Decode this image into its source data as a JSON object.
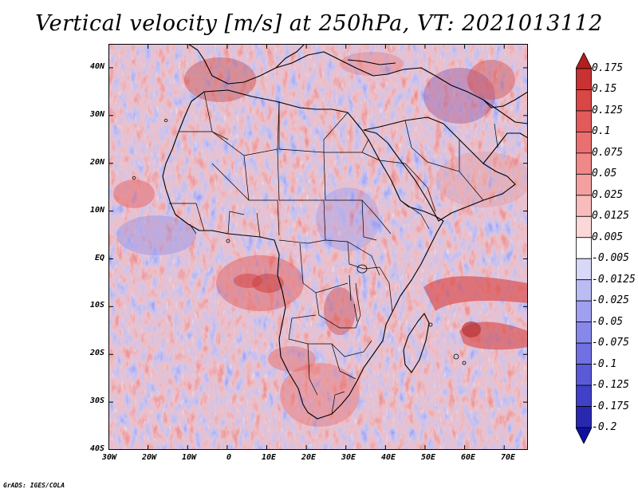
{
  "title": "Vertical velocity [m/s] at 250hPa, VT: 2021013112",
  "footer": "GrADS: IGES/COLA",
  "colors": {
    "background": "#ffffff",
    "land_outline": "#000000",
    "field_neutral": "#f4f2fb"
  },
  "map": {
    "projection": "latlon",
    "lon_range": [
      -30,
      76
    ],
    "lat_range": [
      -40,
      45
    ],
    "lat_labels": [
      "40N",
      "30N",
      "20N",
      "10N",
      "EQ",
      "10S",
      "20S",
      "30S",
      "40S"
    ],
    "lat_values": [
      40,
      30,
      20,
      10,
      0,
      -10,
      -20,
      -30,
      -40
    ],
    "lon_labels": [
      "30W",
      "20W",
      "10W",
      "0",
      "10E",
      "20E",
      "30E",
      "40E",
      "50E",
      "60E",
      "70E"
    ],
    "lon_values": [
      -30,
      -20,
      -10,
      0,
      10,
      20,
      30,
      40,
      50,
      60,
      70
    ]
  },
  "colorbar": {
    "labels": [
      "0.175",
      "0.15",
      "0.125",
      "0.1",
      "0.075",
      "0.05",
      "0.025",
      "0.0125",
      "0.005",
      "-0.005",
      "-0.0125",
      "-0.025",
      "-0.05",
      "-0.075",
      "-0.1",
      "-0.125",
      "-0.175",
      "-0.2"
    ],
    "colors": [
      "#b41e1e",
      "#c83232",
      "#d84646",
      "#e25a5a",
      "#ea7070",
      "#f08888",
      "#f4a0a0",
      "#f8bcbc",
      "#fbd8d8",
      "#ffffff",
      "#d8d8f8",
      "#bcbcf4",
      "#a0a0f0",
      "#8888ea",
      "#7070e2",
      "#5a5ad8",
      "#4040c8",
      "#2828b0",
      "#1010a0"
    ]
  }
}
